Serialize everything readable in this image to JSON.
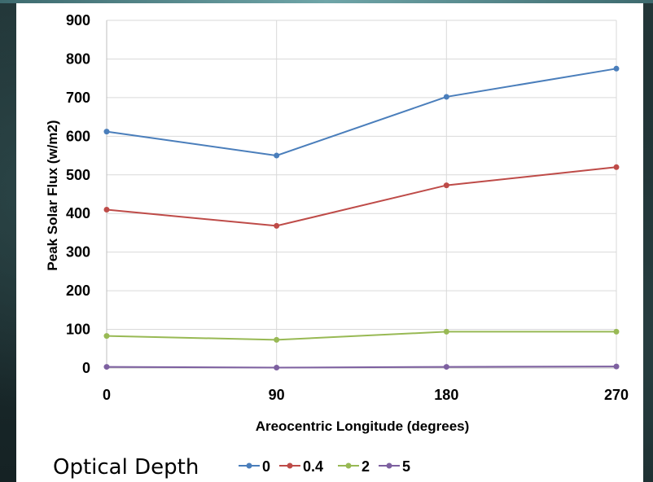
{
  "chart_data": {
    "type": "line",
    "title": "",
    "xlabel": "Areocentric Longitude (degrees)",
    "ylabel": "Peak Solar Flux (w/m2)",
    "x": [
      0,
      90,
      180,
      270
    ],
    "xlim": [
      0,
      270
    ],
    "ylim": [
      0,
      900
    ],
    "yticks": [
      0,
      100,
      200,
      300,
      400,
      500,
      600,
      700,
      800,
      900
    ],
    "grid": true,
    "legend_title": "Optical Depth",
    "legend_position": "bottom",
    "series": [
      {
        "name": "0",
        "color": "#4a7ebb",
        "values": [
          612,
          550,
          702,
          775
        ]
      },
      {
        "name": "0.4",
        "color": "#be4b48",
        "values": [
          410,
          368,
          473,
          520
        ]
      },
      {
        "name": "2",
        "color": "#98b954",
        "values": [
          83,
          73,
          94,
          94
        ]
      },
      {
        "name": "5",
        "color": "#7d60a0",
        "values": [
          3,
          1,
          3,
          4
        ]
      }
    ]
  }
}
